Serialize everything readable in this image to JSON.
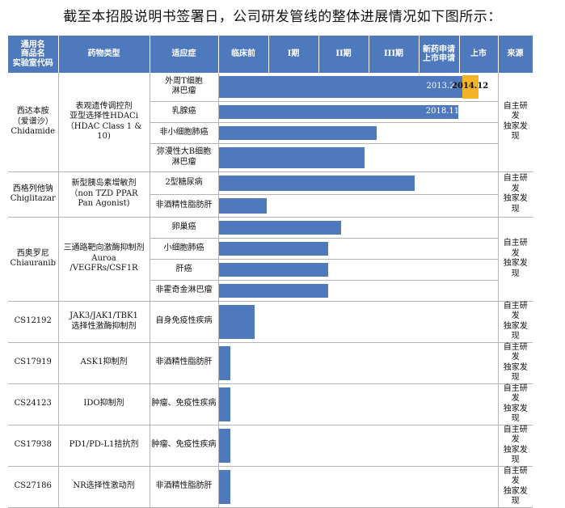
{
  "title": "截至本招股说明书签署日，公司研发管线的整体进展情况如下图所示：",
  "headers": {
    "drug": [
      "通用名",
      "商品名",
      "实验室代码"
    ],
    "type": "药物类型",
    "indication": "适应症",
    "preclinical": "临床前",
    "phase1": "I期",
    "phase2": "II期",
    "phase3": "III期",
    "nda": [
      "新药申请",
      "上市申请"
    ],
    "market": "上市",
    "source": "来源"
  },
  "colors": {
    "header": "#4f79bd",
    "bar": "#4f79bd",
    "highlight": "#f5b428"
  },
  "drugs": [
    {
      "name": [
        "西达本胺",
        "（爱谱沙）",
        "Chidamide"
      ],
      "type": [
        "表观遗传调控剂",
        "亚型选择性HDACi",
        "（HDAC Class 1 & 10)"
      ],
      "source": [
        "自主研发",
        "独家发现"
      ],
      "indications": [
        {
          "label": [
            "外周T细胞",
            "淋巴瘤"
          ],
          "progress": 0.918,
          "date": "2013.2",
          "market_date": "2014.12"
        },
        {
          "label": [
            "乳腺癌"
          ],
          "progress": 0.858,
          "date": "2018.11"
        },
        {
          "label": [
            "非小细胞肺癌"
          ],
          "progress": 0.568
        },
        {
          "label": [
            "弥漫性大B细胞",
            "淋巴瘤"
          ],
          "progress": 0.524
        }
      ]
    },
    {
      "name": [
        "西格列他钠",
        "Chiglitazar"
      ],
      "type": [
        "新型胰岛素增敏剂",
        "（non TZD PPAR",
        "Pan Agonist)"
      ],
      "source": [
        "自主研发",
        "独家发现"
      ],
      "indications": [
        {
          "label": [
            "2型糖尿病"
          ],
          "progress": 0.704
        },
        {
          "label": [
            "非酒精性脂肪肝"
          ],
          "progress": 0.172
        }
      ]
    },
    {
      "name": [
        "西奥罗尼",
        "Chiauranib"
      ],
      "type": [
        "三通路靶向激酶抑制剂",
        "Auroa /VEGFRs/CSF1R"
      ],
      "source": [
        "自主研发",
        "独家发现"
      ],
      "indications": [
        {
          "label": [
            "卵巢癌"
          ],
          "progress": 0.44
        },
        {
          "label": [
            "小细胞肺癌"
          ],
          "progress": 0.393
        },
        {
          "label": [
            "肝癌"
          ],
          "progress": 0.393
        },
        {
          "label": [
            "非霍奇金淋巴瘤"
          ],
          "progress": 0.393
        }
      ]
    },
    {
      "name": [
        "CS12192"
      ],
      "type": [
        "JAK3/JAK1/TBK1",
        "选择性激酶抑制剂"
      ],
      "source": [
        "自主研发",
        "独家发现"
      ],
      "indications": [
        {
          "label": [
            "自身免疫性疾病"
          ],
          "progress": 0.13
        }
      ]
    },
    {
      "name": [
        "CS17919"
      ],
      "type": [
        "ASK1抑制剂"
      ],
      "source": [
        "自主研发",
        "独家发现"
      ],
      "indications": [
        {
          "label": [
            "非酒精性脂肪肝"
          ],
          "progress": 0.042
        }
      ]
    },
    {
      "name": [
        "CS24123"
      ],
      "type": [
        "IDO抑制剂"
      ],
      "source": [
        "自主研发",
        "独家发现"
      ],
      "indications": [
        {
          "label": [
            "肿瘤、免疫性疾病"
          ],
          "progress": 0.042
        }
      ]
    },
    {
      "name": [
        "CS17938"
      ],
      "type": [
        "PD1/PD-L1拮抗剂"
      ],
      "source": [
        "自主研发",
        "独家发现"
      ],
      "indications": [
        {
          "label": [
            "肿瘤、免疫性疾病"
          ],
          "progress": 0.042
        }
      ]
    },
    {
      "name": [
        "CS27186"
      ],
      "type": [
        "NR选择性激动剂"
      ],
      "source": [
        "自主研发",
        "独家发现"
      ],
      "indications": [
        {
          "label": [
            "非酒精性脂肪肝"
          ],
          "progress": 0.042
        }
      ]
    }
  ]
}
